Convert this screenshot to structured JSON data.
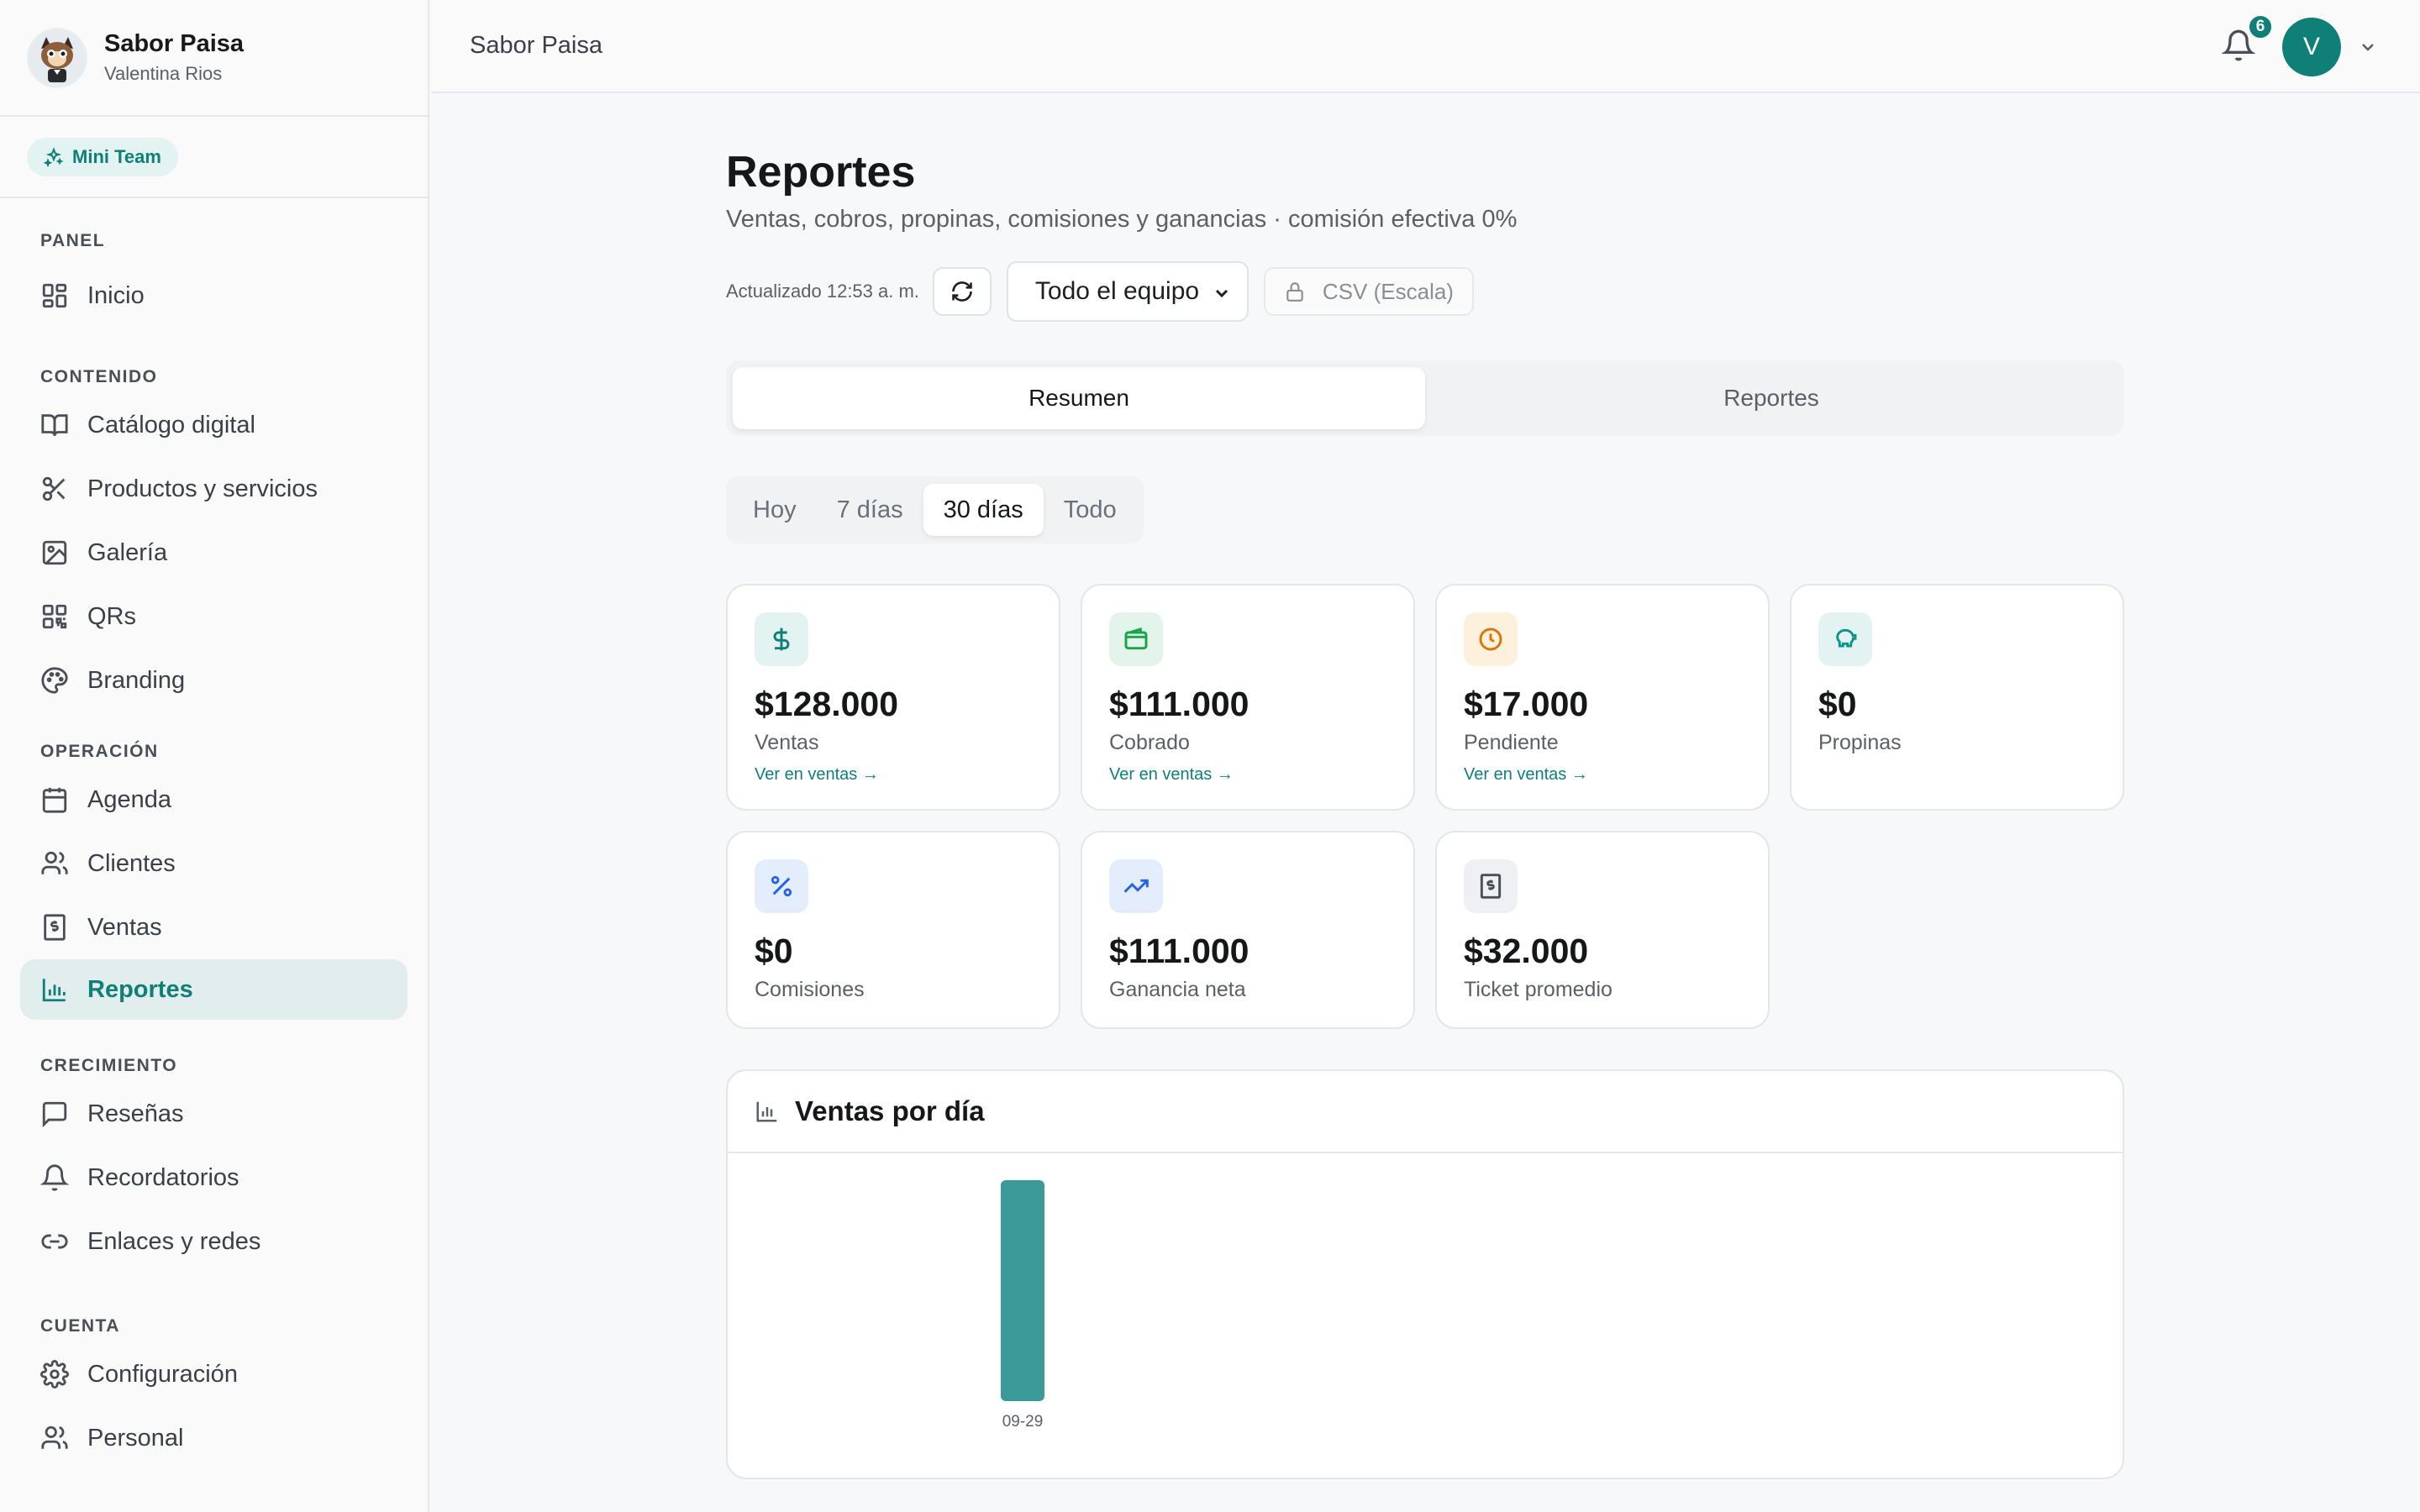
{
  "brand": {
    "name": "Sabor Paisa",
    "user": "Valentina Rios"
  },
  "plan_badge": "Mini Team",
  "nav": {
    "sections": [
      {
        "title": "PANEL",
        "items": [
          {
            "label": "Inicio",
            "icon": "grid-icon"
          }
        ]
      },
      {
        "title": "CONTENIDO",
        "items": [
          {
            "label": "Catálogo digital",
            "icon": "book-icon"
          },
          {
            "label": "Productos y servicios",
            "icon": "scissors-icon"
          },
          {
            "label": "Galería",
            "icon": "image-icon"
          },
          {
            "label": "QRs",
            "icon": "qr-icon"
          },
          {
            "label": "Branding",
            "icon": "palette-icon"
          }
        ]
      },
      {
        "title": "OPERACIÓN",
        "items": [
          {
            "label": "Agenda",
            "icon": "calendar-icon"
          },
          {
            "label": "Clientes",
            "icon": "users-icon"
          },
          {
            "label": "Ventas",
            "icon": "receipt-icon"
          },
          {
            "label": "Reportes",
            "icon": "bar-chart-icon",
            "active": true
          }
        ]
      },
      {
        "title": "CRECIMIENTO",
        "items": [
          {
            "label": "Reseñas",
            "icon": "message-icon"
          },
          {
            "label": "Recordatorios",
            "icon": "bell-icon"
          },
          {
            "label": "Enlaces y redes",
            "icon": "link-icon"
          }
        ]
      },
      {
        "title": "CUENTA",
        "items": [
          {
            "label": "Configuración",
            "icon": "gear-icon"
          },
          {
            "label": "Personal",
            "icon": "users-icon"
          }
        ]
      }
    ]
  },
  "topbar": {
    "title": "Sabor Paisa",
    "notifications": "6",
    "avatar_initial": "V"
  },
  "page": {
    "title": "Reportes",
    "subtitle": "Ventas, cobros, propinas, comisiones y ganancias · comisión efectiva 0%",
    "updated": "Actualizado 12:53 a. m.",
    "team_select": "Todo el equipo",
    "csv_label": "CSV (Escala)"
  },
  "tabs": [
    "Resumen",
    "Reportes"
  ],
  "periods": [
    "Hoy",
    "7 días",
    "30 días",
    "Todo"
  ],
  "active_period": "30 días",
  "cards": [
    {
      "value": "$128.000",
      "label": "Ventas",
      "link": "Ver en ventas →",
      "icon": "dollar-icon",
      "icon_bg": "#e2f3f1",
      "icon_color": "#0f7f78"
    },
    {
      "value": "$111.000",
      "label": "Cobrado",
      "link": "Ver en ventas →",
      "icon": "wallet-icon",
      "icon_bg": "#e3f4ea",
      "icon_color": "#16a34a"
    },
    {
      "value": "$17.000",
      "label": "Pendiente",
      "link": "Ver en ventas →",
      "icon": "clock-icon",
      "icon_bg": "#fdf0dc",
      "icon_color": "#d97706"
    },
    {
      "value": "$0",
      "label": "Propinas",
      "link": "",
      "icon": "piggy-bank-icon",
      "icon_bg": "#e2f3f1",
      "icon_color": "#0f9488"
    },
    {
      "value": "$0",
      "label": "Comisiones",
      "link": "",
      "icon": "percent-icon",
      "icon_bg": "#e4edfb",
      "icon_color": "#2563eb"
    },
    {
      "value": "$111.000",
      "label": "Ganancia neta",
      "link": "",
      "icon": "trending-up-icon",
      "icon_bg": "#e4edfb",
      "icon_color": "#2563eb"
    },
    {
      "value": "$32.000",
      "label": "Ticket promedio",
      "link": "",
      "icon": "receipt-icon",
      "icon_bg": "#eef0f3",
      "icon_color": "#4a4f57"
    }
  ],
  "chart_data": {
    "type": "bar",
    "title": "Ventas por día",
    "categories": [
      "09-29"
    ],
    "values": [
      128000
    ],
    "ylim": [
      0,
      128000
    ],
    "color": "#3b9a98"
  }
}
